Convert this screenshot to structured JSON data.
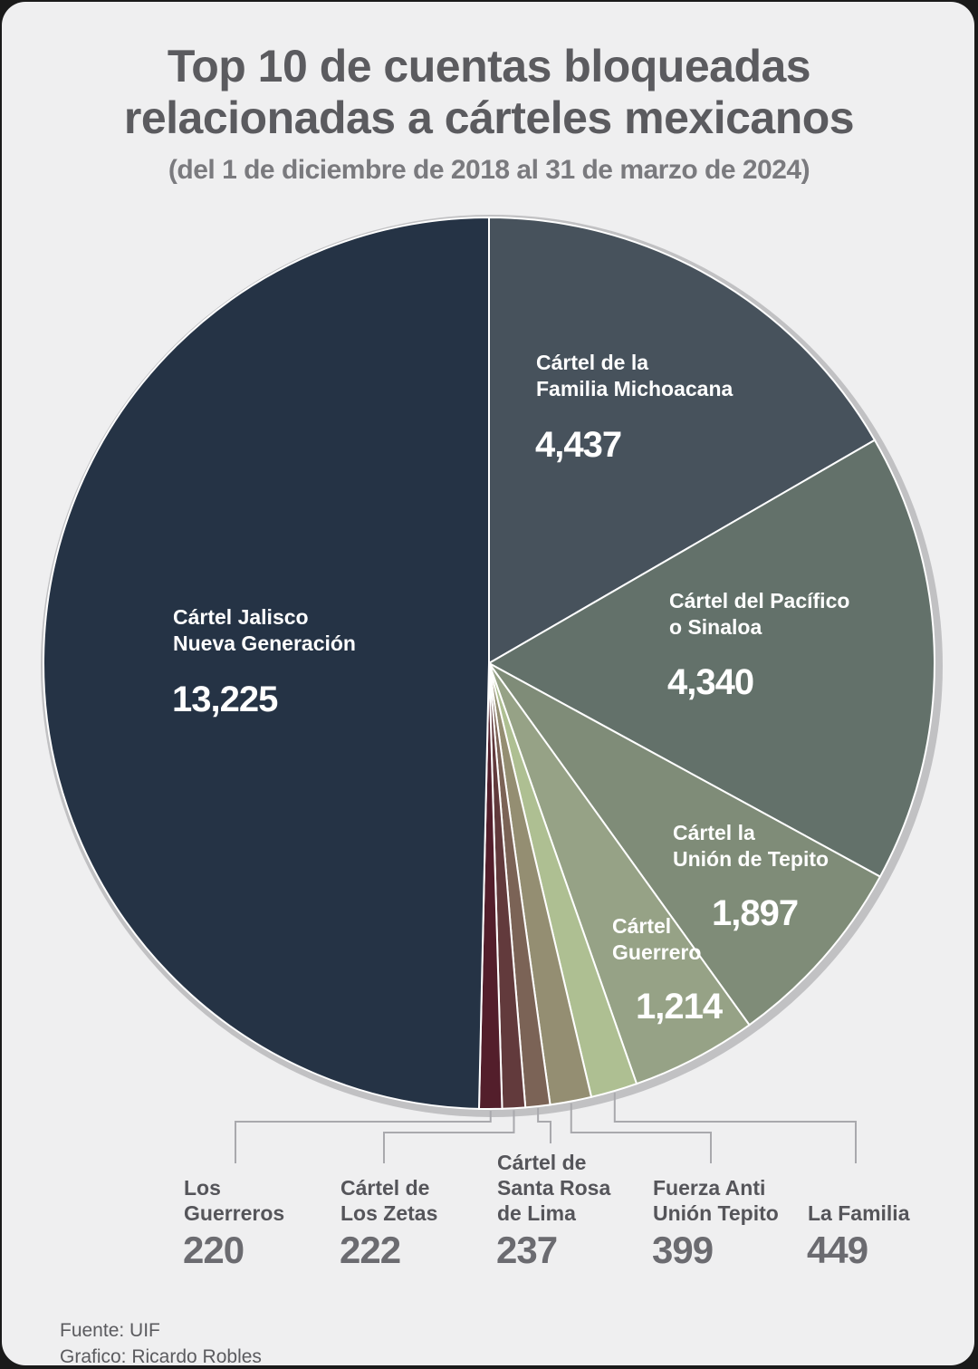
{
  "header": {
    "title_line1": "Top 10 de cuentas bloqueadas",
    "title_line2": "relacionadas a cárteles mexicanos",
    "subtitle": "(del 1 de diciembre de 2018 al 31 de marzo de 2024)"
  },
  "chart_data": {
    "type": "pie",
    "title": "Top 10 de cuentas bloqueadas relacionadas a cárteles mexicanos",
    "subtitle": "(del 1 de diciembre de 2018 al 31 de marzo de 2024)",
    "categories": [
      "Cártel de la Familia Michoacana",
      "Cártel del Pacífico o Sinaloa",
      "Cártel la Unión de Tepito",
      "Cártel Guerrero",
      "La Familia",
      "Fuerza Anti Unión Tepito",
      "Cártel de Santa Rosa de Lima",
      "Cártel de Los Zetas",
      "Los Guerreros",
      "Cártel Jalisco Nueva Generación"
    ],
    "values": [
      4437,
      4340,
      1897,
      1214,
      449,
      399,
      237,
      222,
      220,
      13225
    ],
    "value_labels": [
      "4,437",
      "4,340",
      "1,897",
      "1,214",
      "449",
      "399",
      "237",
      "222",
      "220",
      "13,225"
    ],
    "colors": [
      "#47525c",
      "#63716a",
      "#7f8c78",
      "#96a286",
      "#aebf92",
      "#948e72",
      "#7b6356",
      "#623a3c",
      "#531e2b",
      "#253345"
    ],
    "inside_labels": [
      {
        "line1": "Cártel de la",
        "line2": "Familia Michoacana"
      },
      {
        "line1": "Cártel del Pacífico",
        "line2": "o Sinaloa"
      },
      {
        "line1": "Cártel la",
        "line2": "Unión de Tepito"
      },
      {
        "line1": "Cártel",
        "line2": "Guerrero"
      },
      {
        "line1": "Cártel Jalisco",
        "line2": "Nueva Generación"
      }
    ],
    "outside_labels": [
      {
        "lines": [
          "Los",
          "Guerreros"
        ]
      },
      {
        "lines": [
          "Cártel de",
          "Los Zetas"
        ]
      },
      {
        "lines": [
          "Cártel de",
          "Santa Rosa",
          "de Lima"
        ]
      },
      {
        "lines": [
          "Fuerza Anti",
          "Unión Tepito"
        ]
      },
      {
        "lines": [
          "La Familia"
        ]
      }
    ],
    "legend": "none",
    "grid": false
  },
  "footer": {
    "source": "Fuente: UIF",
    "credit": "Grafico: Ricardo Robles"
  }
}
